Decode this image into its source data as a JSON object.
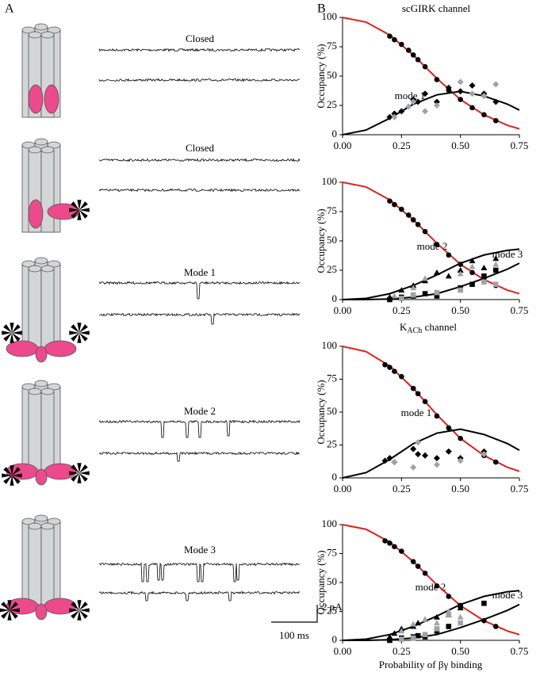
{
  "panel_labels": [
    "A",
    "B"
  ],
  "panel_a": {
    "traces": [
      "Closed",
      "Closed",
      "Mode 1",
      "Mode 2",
      "Mode 3"
    ],
    "scale_bar": {
      "current": "2 pA",
      "time": "100 ms"
    }
  },
  "chart_data": [
    {
      "type": "line",
      "title": "scGIRK channel",
      "ylabel": "Occupancy (%)",
      "xlim": [
        0,
        0.75
      ],
      "ylim": [
        0,
        100
      ],
      "xticks": [
        {
          "value": 0,
          "label": "0.00"
        },
        {
          "value": 0.25,
          "label": "0.25"
        },
        {
          "value": 0.5,
          "label": "0.50"
        },
        {
          "value": 0.75,
          "label": "0.75"
        }
      ],
      "yticks": [
        0,
        25,
        50,
        75,
        100
      ],
      "annotations": [
        "mode 1"
      ],
      "x": [
        0,
        0.1,
        0.2,
        0.3,
        0.4,
        0.5,
        0.6,
        0.7,
        0.75
      ],
      "series": [
        {
          "color": "#e0201b",
          "values": [
            100,
            96,
            85,
            68,
            48,
            30,
            17,
            8,
            5
          ]
        },
        {
          "color": "#000000",
          "values": [
            0,
            4,
            14,
            26,
            34,
            37,
            33,
            26,
            21
          ]
        },
        {
          "marker": "circle",
          "color": "#000000",
          "x": [
            0.2,
            0.22,
            0.25,
            0.28,
            0.3,
            0.32,
            0.35,
            0.4,
            0.45,
            0.5,
            0.55,
            0.6,
            0.65
          ],
          "values": [
            84,
            81,
            77,
            72,
            68,
            64,
            58,
            47,
            38,
            30,
            23,
            17,
            12
          ]
        },
        {
          "marker": "diamond",
          "color": "#000000",
          "x": [
            0.2,
            0.22,
            0.25,
            0.3,
            0.32,
            0.35,
            0.4,
            0.45,
            0.5,
            0.55,
            0.6,
            0.65
          ],
          "values": [
            15,
            18,
            20,
            30,
            28,
            35,
            28,
            40,
            37,
            42,
            35,
            28
          ]
        },
        {
          "marker": "diamond",
          "color": "#a0a4a8",
          "x": [
            0.22,
            0.28,
            0.3,
            0.35,
            0.4,
            0.5,
            0.55,
            0.6,
            0.65
          ],
          "values": [
            15,
            24,
            28,
            20,
            25,
            45,
            35,
            33,
            43
          ]
        }
      ]
    },
    {
      "type": "line",
      "ylabel": "Occupancy (%)",
      "xlim": [
        0,
        0.75
      ],
      "ylim": [
        0,
        100
      ],
      "xticks": [
        {
          "value": 0,
          "label": "0.00"
        },
        {
          "value": 0.25,
          "label": "0.25"
        },
        {
          "value": 0.5,
          "label": "0.50"
        },
        {
          "value": 0.75,
          "label": "0.75"
        }
      ],
      "yticks": [
        0,
        25,
        50,
        75,
        100
      ],
      "annotations": [
        "mode 2",
        "mode 3"
      ],
      "x": [
        0,
        0.1,
        0.2,
        0.3,
        0.4,
        0.5,
        0.6,
        0.7,
        0.75
      ],
      "series": [
        {
          "color": "#e0201b",
          "values": [
            100,
            96,
            85,
            68,
            48,
            30,
            17,
            8,
            5
          ]
        },
        {
          "color": "#000000",
          "values": [
            0,
            1,
            5,
            12,
            21,
            31,
            38,
            42,
            43
          ]
        },
        {
          "color": "#000000",
          "values": [
            0,
            0,
            0.5,
            2,
            5,
            11,
            18,
            26,
            31
          ]
        },
        {
          "marker": "circle",
          "color": "#000000",
          "x": [
            0.2,
            0.22,
            0.25,
            0.28,
            0.3,
            0.32,
            0.35,
            0.4,
            0.45,
            0.5,
            0.55,
            0.6,
            0.65
          ],
          "values": [
            84,
            81,
            77,
            72,
            68,
            64,
            58,
            47,
            38,
            30,
            23,
            17,
            12
          ]
        },
        {
          "marker": "triangle",
          "color": "#000000",
          "x": [
            0.2,
            0.25,
            0.3,
            0.35,
            0.4,
            0.45,
            0.5,
            0.55,
            0.6,
            0.65
          ],
          "values": [
            2,
            8,
            12,
            16,
            23,
            20,
            25,
            33,
            27,
            35
          ]
        },
        {
          "marker": "triangle",
          "color": "#a0a4a8",
          "x": [
            0.22,
            0.3,
            0.35,
            0.5,
            0.55,
            0.65
          ],
          "values": [
            3,
            10,
            18,
            22,
            28,
            30
          ]
        },
        {
          "marker": "square",
          "color": "#000000",
          "x": [
            0.2,
            0.25,
            0.3,
            0.35,
            0.4,
            0.5,
            0.55,
            0.6,
            0.65
          ],
          "values": [
            0,
            2,
            3,
            5,
            3,
            10,
            13,
            20,
            25
          ]
        },
        {
          "marker": "square",
          "color": "#a0a4a8",
          "x": [
            0.25,
            0.3,
            0.4,
            0.5,
            0.6,
            0.65
          ],
          "values": [
            1,
            4,
            6,
            8,
            15,
            13
          ]
        }
      ]
    },
    {
      "type": "line",
      "title": {
        "base": "K",
        "subscript": "ACh",
        "rest": " channel"
      },
      "ylabel": "Occupancy (%)",
      "xlim": [
        0,
        0.75
      ],
      "ylim": [
        0,
        100
      ],
      "xticks": [
        {
          "value": 0,
          "label": "0.00"
        },
        {
          "value": 0.25,
          "label": "0.25"
        },
        {
          "value": 0.5,
          "label": "0.50"
        },
        {
          "value": 0.75,
          "label": "0.75"
        }
      ],
      "yticks": [
        0,
        25,
        50,
        75,
        100
      ],
      "annotations": [
        "mode 1"
      ],
      "x": [
        0,
        0.1,
        0.2,
        0.3,
        0.4,
        0.5,
        0.6,
        0.7,
        0.75
      ],
      "series": [
        {
          "color": "#e0201b",
          "values": [
            100,
            96,
            85,
            68,
            48,
            30,
            17,
            8,
            5
          ]
        },
        {
          "color": "#000000",
          "values": [
            0,
            4,
            14,
            26,
            34,
            37,
            33,
            26,
            21
          ]
        },
        {
          "marker": "circle",
          "color": "#000000",
          "x": [
            0.18,
            0.2,
            0.22,
            0.25,
            0.3,
            0.32,
            0.35,
            0.4,
            0.45,
            0.5,
            0.6,
            0.65
          ],
          "values": [
            86,
            84,
            81,
            77,
            68,
            64,
            58,
            47,
            38,
            30,
            17,
            12
          ]
        },
        {
          "marker": "diamond",
          "color": "#000000",
          "x": [
            0.18,
            0.2,
            0.22,
            0.3,
            0.32,
            0.35,
            0.4,
            0.45,
            0.5,
            0.6
          ],
          "values": [
            13,
            15,
            12,
            22,
            18,
            17,
            15,
            20,
            15,
            20
          ]
        },
        {
          "marker": "diamond",
          "color": "#a0a4a8",
          "x": [
            0.22,
            0.3,
            0.32,
            0.4,
            0.5,
            0.6
          ],
          "values": [
            12,
            8,
            27,
            10,
            13,
            18
          ]
        }
      ]
    },
    {
      "type": "line",
      "ylabel": "Occupancy (%)",
      "xlabel": "Probability of βγ binding",
      "xlim": [
        0,
        0.75
      ],
      "ylim": [
        0,
        100
      ],
      "xticks": [
        {
          "value": 0,
          "label": "0.00"
        },
        {
          "value": 0.25,
          "label": "0.25"
        },
        {
          "value": 0.5,
          "label": "0.50"
        },
        {
          "value": 0.75,
          "label": "0.75"
        }
      ],
      "yticks": [
        0,
        25,
        50,
        75,
        100
      ],
      "annotations": [
        "mode 2",
        "mode 3"
      ],
      "x": [
        0,
        0.1,
        0.2,
        0.3,
        0.4,
        0.5,
        0.6,
        0.7,
        0.75
      ],
      "series": [
        {
          "color": "#e0201b",
          "values": [
            100,
            96,
            85,
            68,
            48,
            30,
            17,
            8,
            5
          ]
        },
        {
          "color": "#000000",
          "values": [
            0,
            1,
            5,
            12,
            21,
            31,
            38,
            42,
            43
          ]
        },
        {
          "color": "#000000",
          "values": [
            0,
            0,
            0.5,
            2,
            5,
            11,
            18,
            26,
            31
          ]
        },
        {
          "marker": "circle",
          "color": "#000000",
          "x": [
            0.18,
            0.2,
            0.22,
            0.25,
            0.3,
            0.32,
            0.35,
            0.4,
            0.45,
            0.5,
            0.6,
            0.65
          ],
          "values": [
            86,
            84,
            81,
            77,
            68,
            64,
            58,
            47,
            38,
            30,
            17,
            12
          ]
        },
        {
          "marker": "triangle",
          "color": "#000000",
          "x": [
            0.2,
            0.22,
            0.25,
            0.3,
            0.32,
            0.35,
            0.4,
            0.45,
            0.5
          ],
          "values": [
            3,
            6,
            10,
            12,
            15,
            18,
            20,
            22,
            28
          ]
        },
        {
          "marker": "triangle",
          "color": "#a0a4a8",
          "x": [
            0.25,
            0.3,
            0.35,
            0.4,
            0.45,
            0.5
          ],
          "values": [
            8,
            14,
            18,
            15,
            25,
            20
          ]
        },
        {
          "marker": "square",
          "color": "#000000",
          "x": [
            0.2,
            0.25,
            0.3,
            0.32,
            0.35,
            0.4,
            0.45,
            0.5,
            0.6
          ],
          "values": [
            0,
            2,
            3,
            4,
            3,
            8,
            12,
            30,
            32
          ]
        },
        {
          "marker": "square",
          "color": "#a0a4a8",
          "x": [
            0.25,
            0.3,
            0.35,
            0.4,
            0.45,
            0.5
          ],
          "values": [
            1,
            2,
            5,
            10,
            22,
            15
          ]
        }
      ]
    }
  ]
}
